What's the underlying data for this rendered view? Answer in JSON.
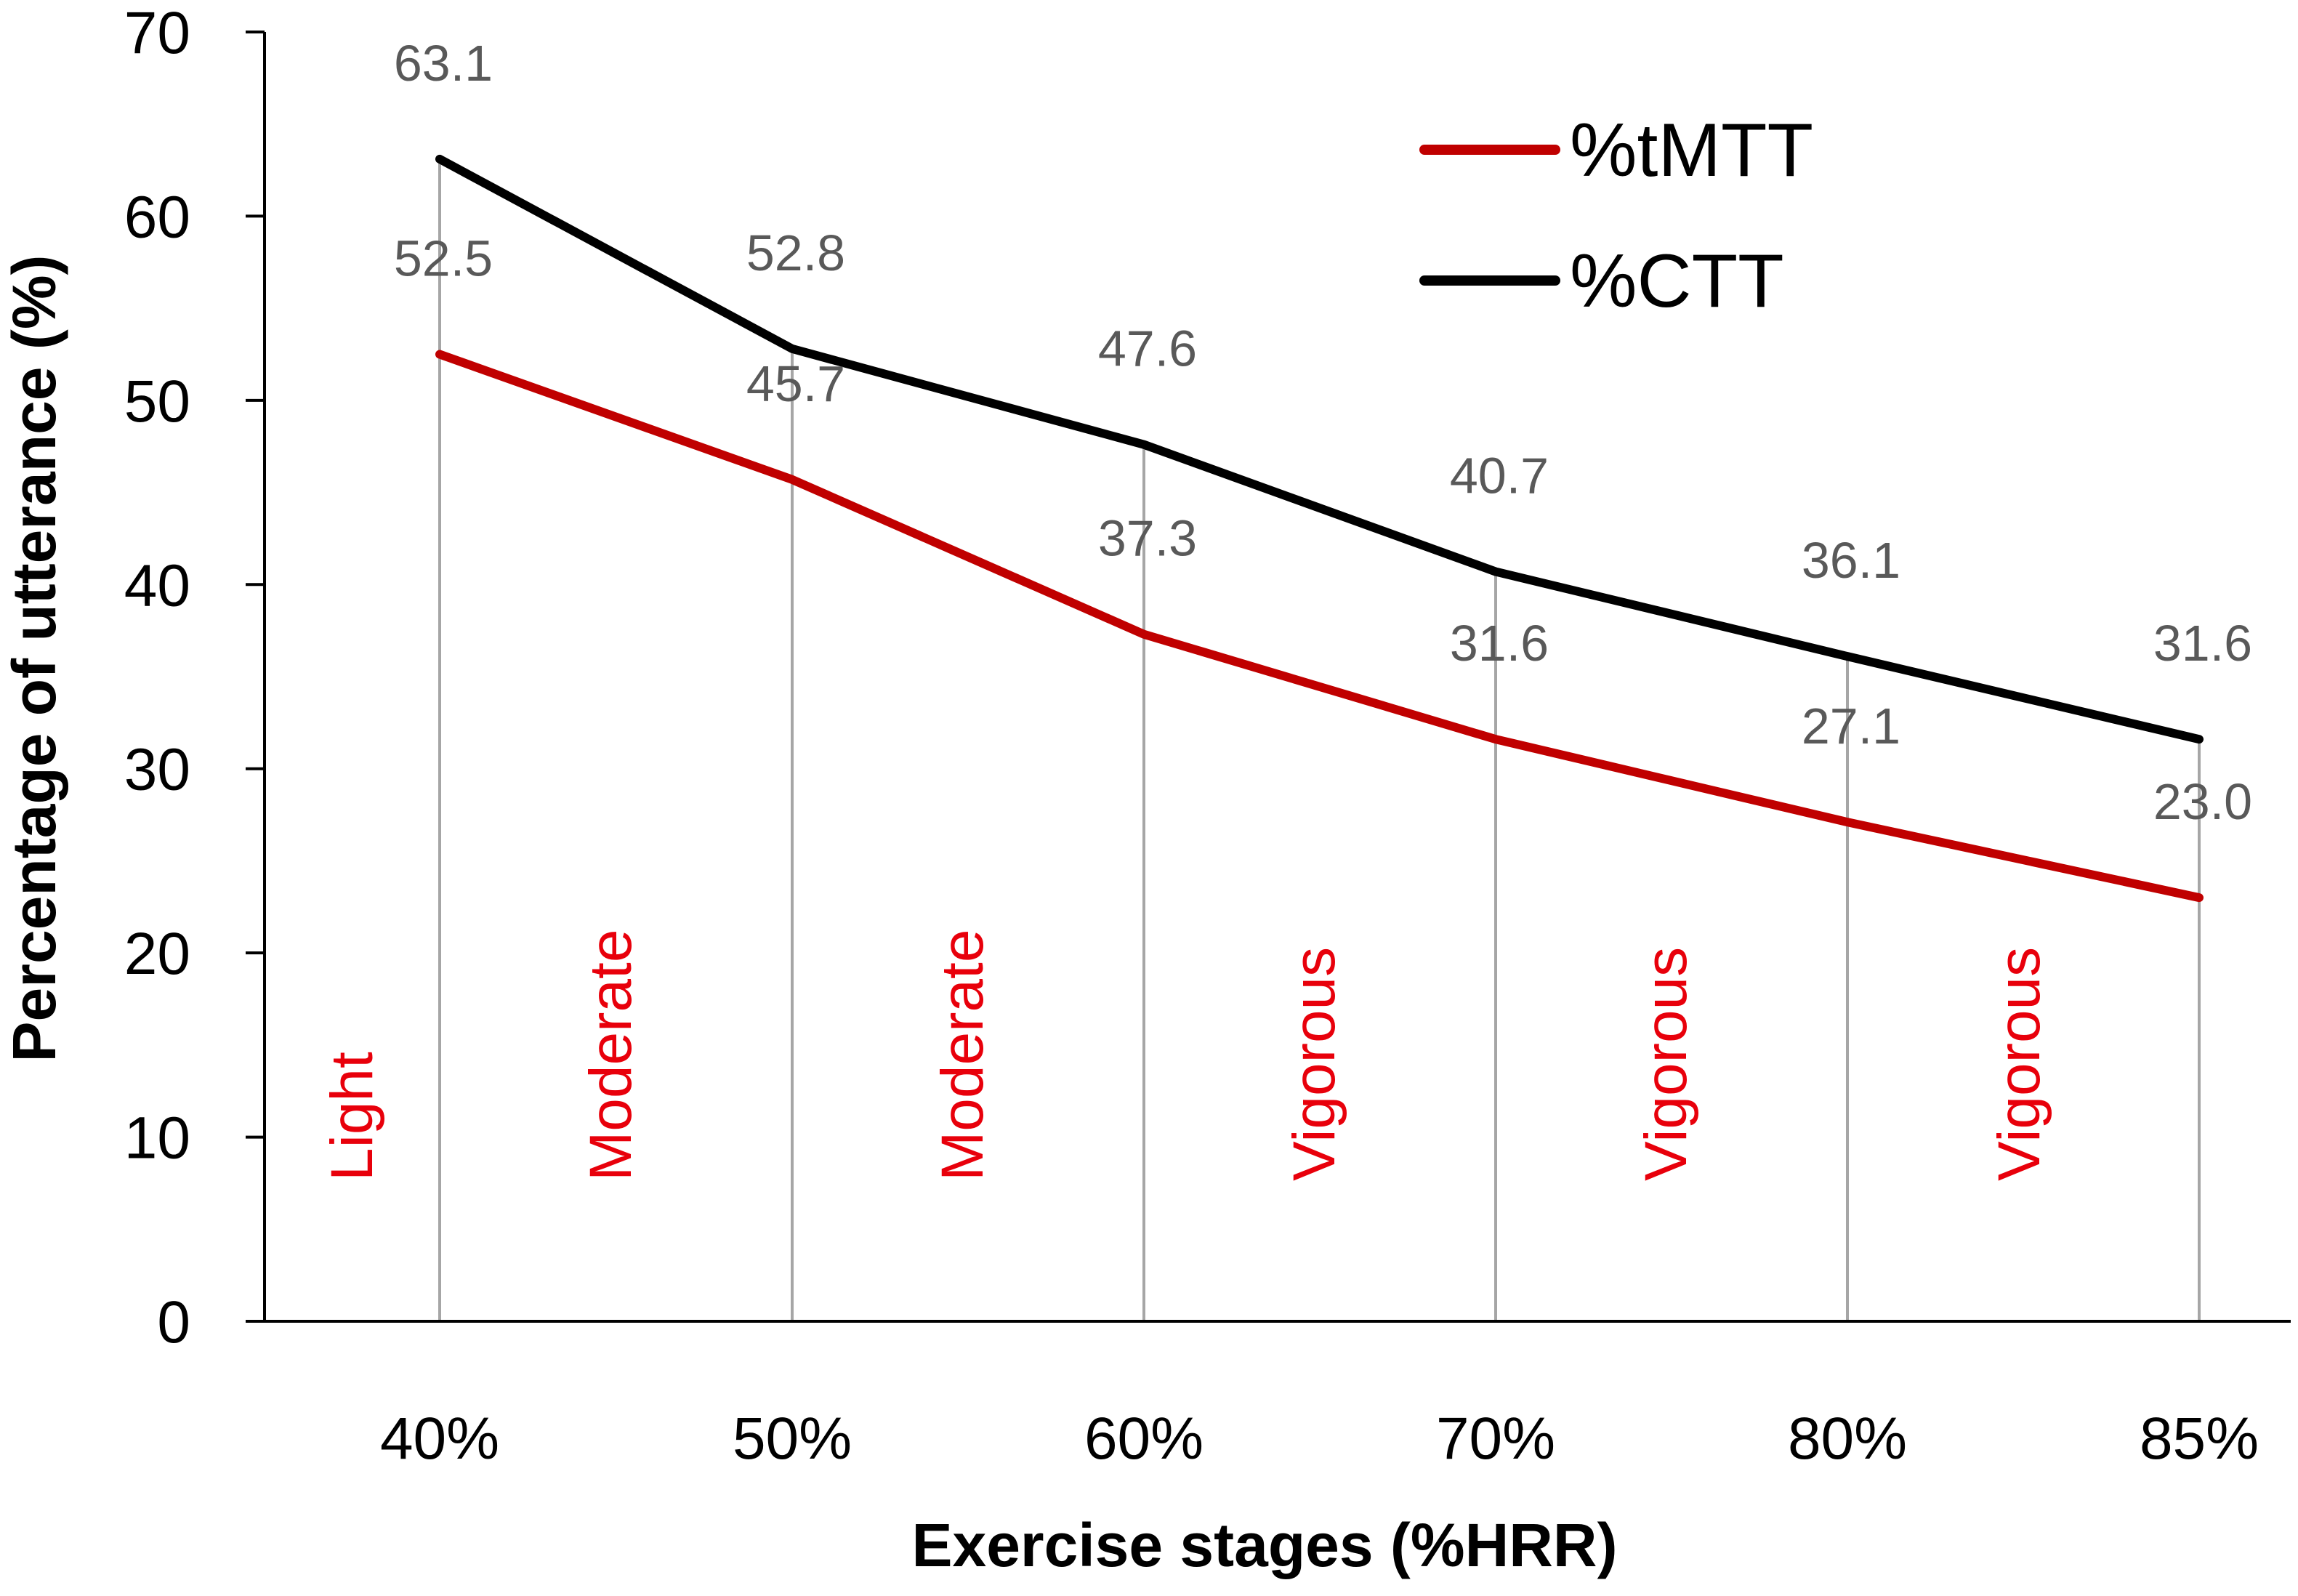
{
  "chart_data": {
    "type": "line",
    "title": "",
    "xlabel": "Exercise stages (%HRR)",
    "ylabel": "Percentage of utterance (%)",
    "ylim": [
      0,
      70
    ],
    "yticks": [
      0,
      10,
      20,
      30,
      40,
      50,
      60,
      70
    ],
    "categories": [
      "40%",
      "50%",
      "60%",
      "70%",
      "80%",
      "85%"
    ],
    "intensity_labels": [
      "Light",
      "Moderate",
      "Moderate",
      "Vigorous",
      "Vigorous",
      "Vigorous"
    ],
    "grid": false,
    "legend_position": "top-right",
    "series": [
      {
        "name": "%tMTT",
        "color": "#c00000",
        "values": [
          52.5,
          45.7,
          37.3,
          31.6,
          27.1,
          23.0
        ],
        "data_labels": [
          "52.5",
          "45.7",
          "37.3",
          "31.6",
          "27.1",
          "23.0"
        ]
      },
      {
        "name": "%CTT",
        "color": "#000000",
        "values": [
          63.1,
          52.8,
          47.6,
          40.7,
          36.1,
          31.6
        ],
        "data_labels": [
          "63.1",
          "52.8",
          "47.6",
          "40.7",
          "36.1",
          "31.6"
        ]
      }
    ],
    "colors": {
      "intensity_label": "#e8000b",
      "data_label": "#595959",
      "drop_line": "#a6a6a6",
      "axis": "#000000"
    }
  }
}
